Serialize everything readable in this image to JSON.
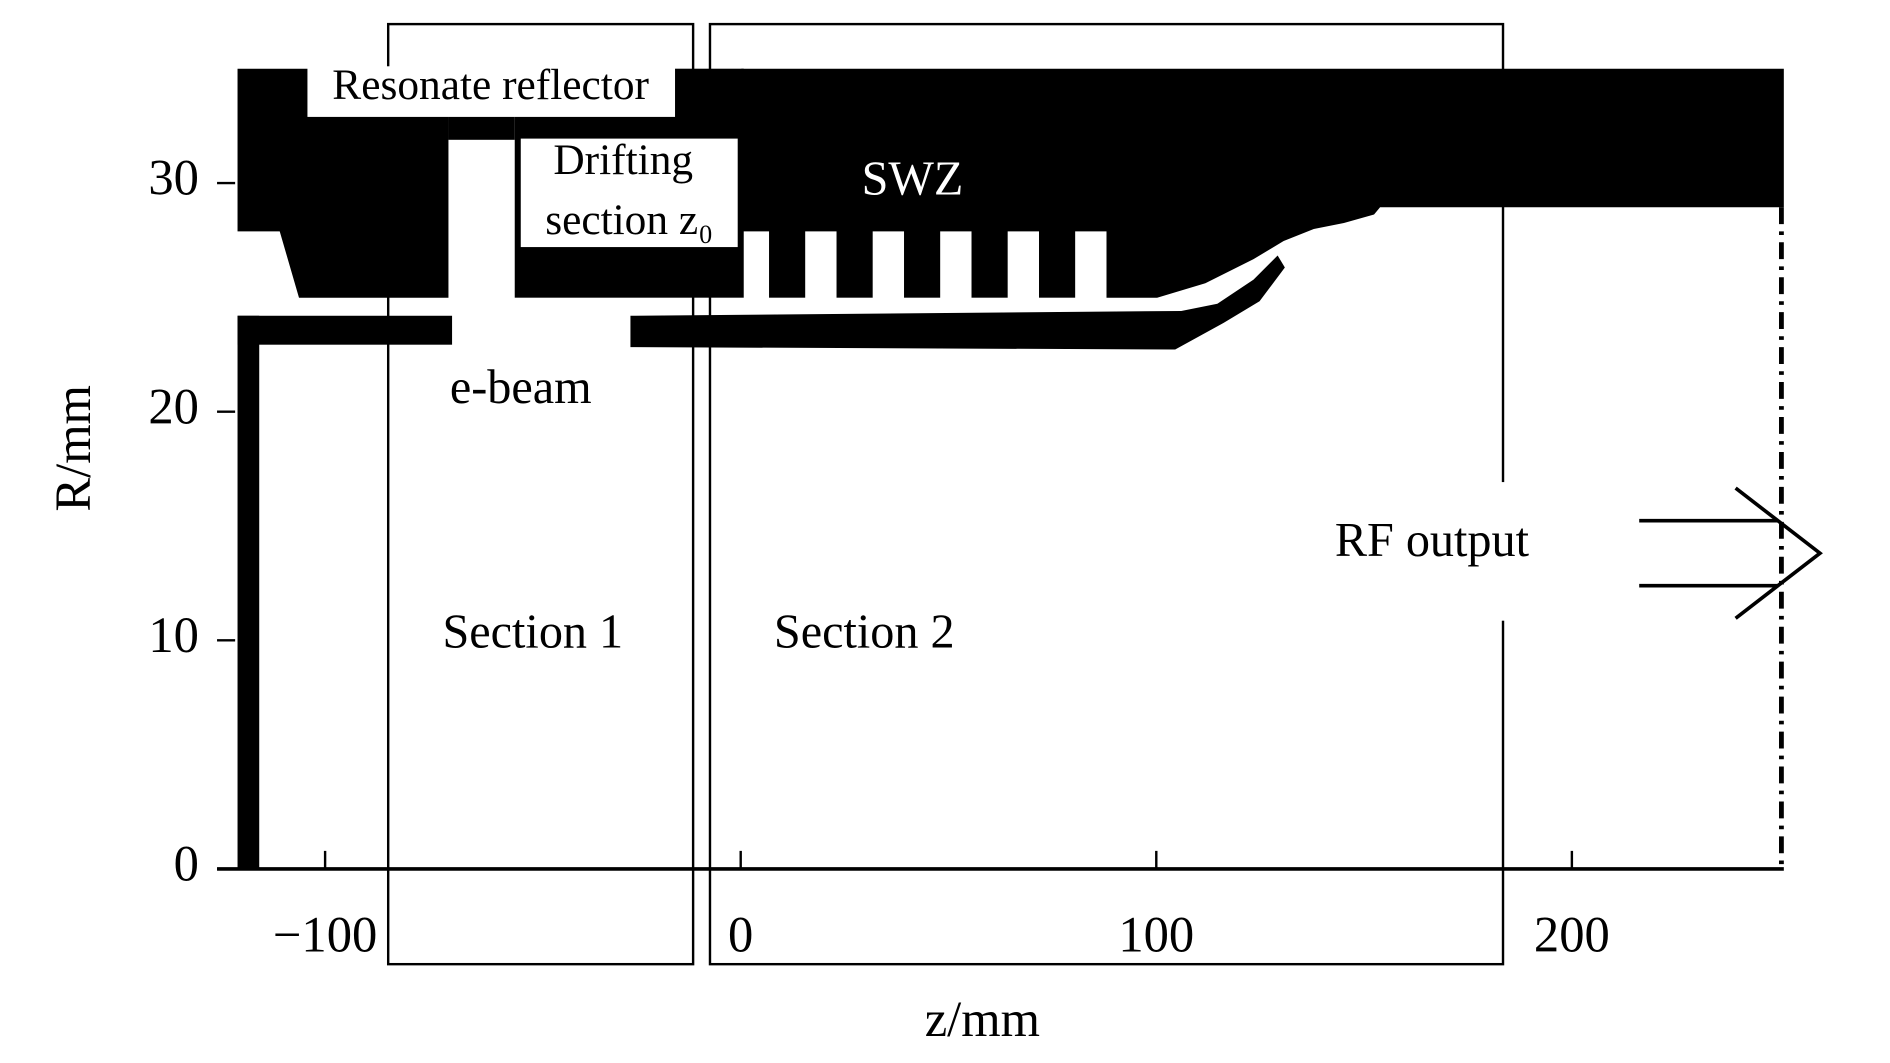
{
  "axes": {
    "xlabel": "z/mm",
    "ylabel": "R/mm",
    "xlim": [
      -126,
      251
    ],
    "ylim": [
      0,
      35
    ],
    "xticks": [
      {
        "value": -100,
        "label": "−100"
      },
      0,
      100,
      200
    ],
    "yticks": [
      0,
      10,
      20,
      30
    ]
  },
  "labels": {
    "reflector": "Resonate reflector",
    "drifting": "Drifting",
    "drifting_section": "section z₀",
    "swz": "SWZ",
    "ebeam": "e-beam",
    "section1": "Section 1",
    "section2": "Section 2",
    "rf_output": "RF output"
  }
}
